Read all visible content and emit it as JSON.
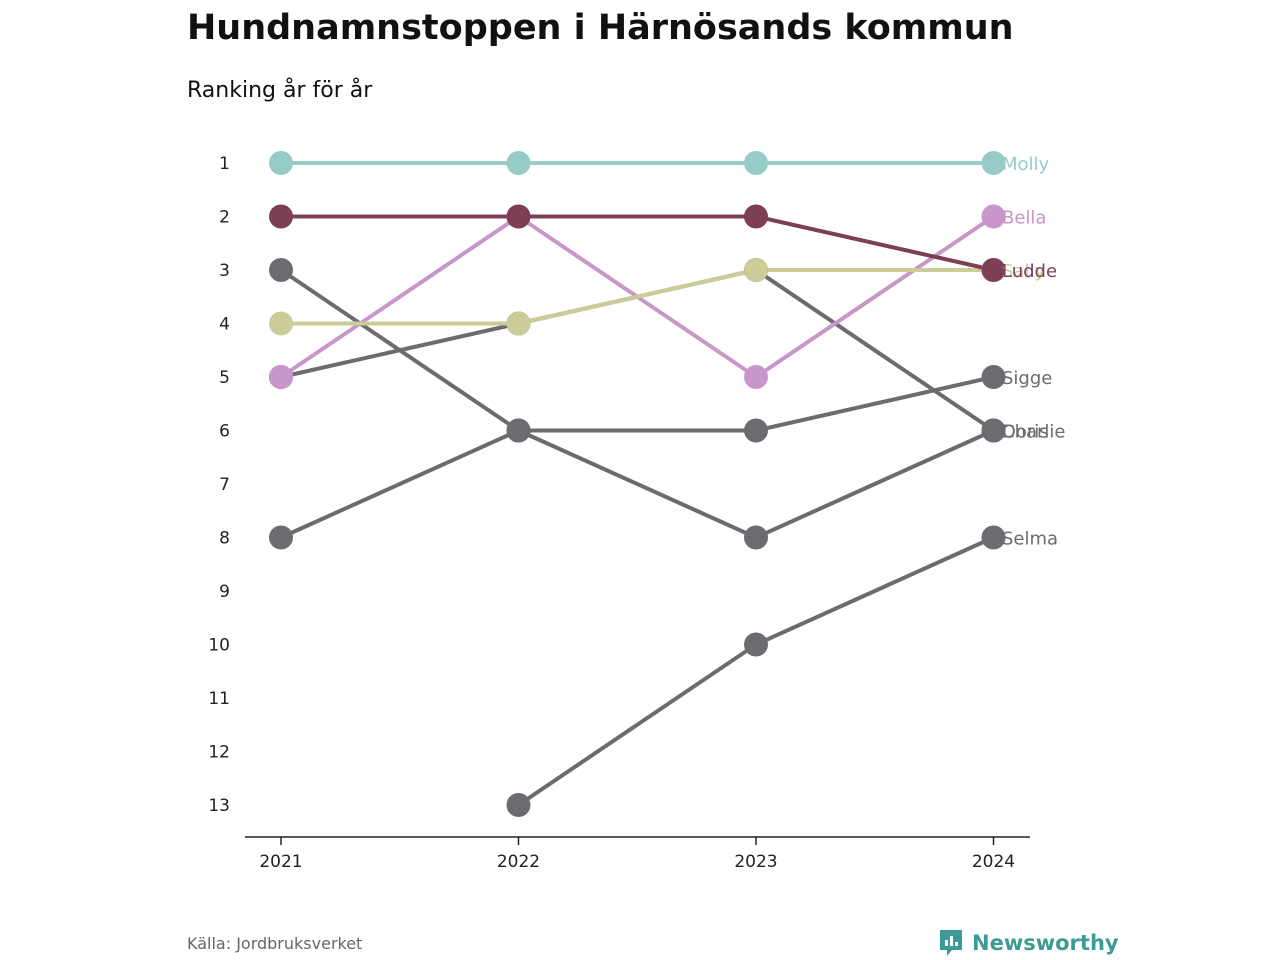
{
  "header": {
    "title": "Hundnamnstoppen i Härnösands kommun",
    "subtitle": "Ranking år för år"
  },
  "footer": {
    "source": "Källa: Jordbruksverket",
    "brand": "Newsworthy",
    "brand_icon": "newsworthy-logo-icon"
  },
  "colors": {
    "Molly": "#96cbc8",
    "Ludde": "#7c3f55",
    "Bella": "#c996cb",
    "Sally": "#cccc99",
    "grey": "#6b6b70",
    "brand": "#3e9a97"
  },
  "chart_data": {
    "type": "line",
    "x": [
      "2021",
      "2022",
      "2023",
      "2024"
    ],
    "y_ticks": [
      "1",
      "2",
      "3",
      "4",
      "5",
      "6",
      "7",
      "8",
      "9",
      "10",
      "11",
      "12",
      "13"
    ],
    "ylim": [
      1,
      13
    ],
    "y_reversed": true,
    "series": [
      {
        "name": "Molly",
        "values": [
          1,
          1,
          1,
          1
        ],
        "color": "#96cbc8"
      },
      {
        "name": "Bella",
        "values": [
          5,
          2,
          5,
          2
        ],
        "color": "#c996cb"
      },
      {
        "name": "Sally",
        "values": [
          4,
          4,
          3,
          3
        ],
        "color": "#cccc99"
      },
      {
        "name": "Ludde",
        "values": [
          2,
          2,
          2,
          3
        ],
        "color": "#7c3f55"
      },
      {
        "name": "Sigge",
        "values": [
          8,
          6,
          6,
          5
        ],
        "color": "#6b6b70"
      },
      {
        "name": "Charlie",
        "values": [
          3,
          6,
          8,
          6
        ],
        "color": "#6b6b70"
      },
      {
        "name": "Doris",
        "values": [
          5,
          4,
          3,
          6
        ],
        "color": "#6b6b70"
      },
      {
        "name": "Selma",
        "values": [
          null,
          13,
          10,
          8
        ],
        "color": "#6b6b70"
      }
    ],
    "legend": "end-of-line labels"
  }
}
